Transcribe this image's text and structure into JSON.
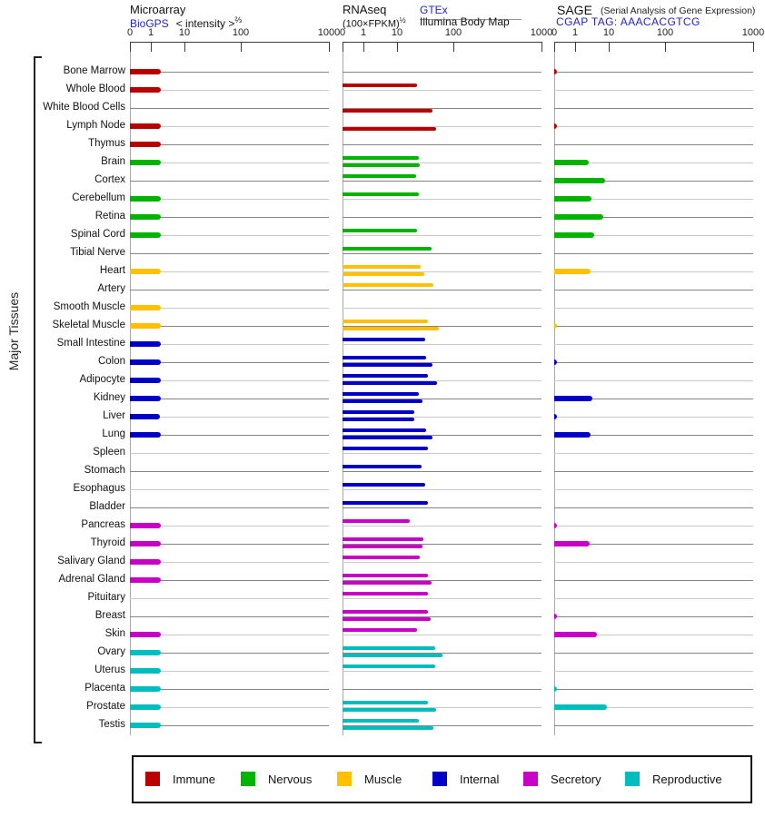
{
  "chart_data": {
    "type": "bar",
    "orientation": "horizontal",
    "left_axis_label": "Major Tissues",
    "axis": {
      "tick_labels": [
        "0",
        "1",
        "10",
        "100",
        "1000"
      ],
      "tick_values": [
        0,
        1,
        10,
        100,
        1000
      ],
      "scale": "log-like, 0 at origin"
    },
    "panels": [
      {
        "key": "microarray",
        "title": "Microarray",
        "link": "BioGPS",
        "suffix": "< intensity >",
        "suffix_sup": "⅔"
      },
      {
        "key": "rnaseq",
        "title": "RNAseq",
        "formula": "(100×FPKM)",
        "formula_sup": "½",
        "link": "GTEx",
        "sublink": "Illumina Body Map"
      },
      {
        "key": "sage",
        "title": "SAGE",
        "note": "(Serial Analysis of Gene Expression)",
        "link": "CGAP TAG: AAACACGTCG"
      }
    ],
    "groups": {
      "immune": {
        "label": "Immune",
        "color": "#bb0000"
      },
      "nervous": {
        "label": "Nervous",
        "color": "#00b400"
      },
      "muscle": {
        "label": "Muscle",
        "color": "#ffc000"
      },
      "internal": {
        "label": "Internal",
        "color": "#0000c8"
      },
      "secretory": {
        "label": "Secretory",
        "color": "#c800c8"
      },
      "reproductive": {
        "label": "Reproductive",
        "color": "#00bebe"
      }
    },
    "legend_order": [
      "immune",
      "nervous",
      "muscle",
      "internal",
      "secretory",
      "reproductive"
    ],
    "tissues": [
      {
        "name": "Bone Marrow",
        "group": "immune",
        "microarray": 2,
        "rnaseq": [
          null,
          null
        ],
        "sage": 0
      },
      {
        "name": "Whole Blood",
        "group": "immune",
        "microarray": 2,
        "rnaseq": [
          23,
          null
        ],
        "sage": null
      },
      {
        "name": "White Blood Cells",
        "group": "immune",
        "microarray": null,
        "rnaseq": [
          null,
          43
        ],
        "sage": null
      },
      {
        "name": "Lymph Node",
        "group": "immune",
        "microarray": 2,
        "rnaseq": [
          null,
          50
        ],
        "sage": 0
      },
      {
        "name": "Thymus",
        "group": "immune",
        "microarray": 2,
        "rnaseq": [
          null,
          null
        ],
        "sage": null
      },
      {
        "name": "Brain",
        "group": "nervous",
        "microarray": 2,
        "rnaseq": [
          24,
          25
        ],
        "sage": 2.5
      },
      {
        "name": "Cortex",
        "group": "nervous",
        "microarray": null,
        "rnaseq": [
          22,
          null
        ],
        "sage": 8
      },
      {
        "name": "Cerebellum",
        "group": "nervous",
        "microarray": 2,
        "rnaseq": [
          24,
          null
        ],
        "sage": 3
      },
      {
        "name": "Retina",
        "group": "nervous",
        "microarray": 2,
        "rnaseq": [
          null,
          null
        ],
        "sage": 7
      },
      {
        "name": "Spinal Cord",
        "group": "nervous",
        "microarray": 2,
        "rnaseq": [
          23,
          null
        ],
        "sage": 3.6
      },
      {
        "name": "Tibial Nerve",
        "group": "nervous",
        "microarray": null,
        "rnaseq": [
          41,
          null
        ],
        "sage": null
      },
      {
        "name": "Heart",
        "group": "muscle",
        "microarray": 2,
        "rnaseq": [
          26,
          31
        ],
        "sage": 2.8
      },
      {
        "name": "Artery",
        "group": "muscle",
        "microarray": null,
        "rnaseq": [
          45,
          null
        ],
        "sage": null
      },
      {
        "name": "Smooth Muscle",
        "group": "muscle",
        "microarray": 2,
        "rnaseq": [
          null,
          null
        ],
        "sage": null
      },
      {
        "name": "Skeletal Muscle",
        "group": "muscle",
        "microarray": 2,
        "rnaseq": [
          35,
          55
        ],
        "sage": 0
      },
      {
        "name": "Small Intestine",
        "group": "internal",
        "microarray": 2,
        "rnaseq": [
          32,
          null
        ],
        "sage": null
      },
      {
        "name": "Colon",
        "group": "internal",
        "microarray": 2,
        "rnaseq": [
          33,
          43
        ],
        "sage": 0
      },
      {
        "name": "Adipocyte",
        "group": "internal",
        "microarray": 2,
        "rnaseq": [
          35,
          52
        ],
        "sage": null
      },
      {
        "name": "Kidney",
        "group": "internal",
        "microarray": 2,
        "rnaseq": [
          24,
          28
        ],
        "sage": 3.2
      },
      {
        "name": "Liver",
        "group": "internal",
        "microarray": 1.9,
        "rnaseq": [
          20,
          20
        ],
        "sage": 0
      },
      {
        "name": "Lung",
        "group": "internal",
        "microarray": 2,
        "rnaseq": [
          33,
          42
        ],
        "sage": 2.9
      },
      {
        "name": "Spleen",
        "group": "internal",
        "microarray": null,
        "rnaseq": [
          35,
          null
        ],
        "sage": null
      },
      {
        "name": "Stomach",
        "group": "internal",
        "microarray": null,
        "rnaseq": [
          27,
          null
        ],
        "sage": null
      },
      {
        "name": "Esophagus",
        "group": "internal",
        "microarray": null,
        "rnaseq": [
          32,
          null
        ],
        "sage": null
      },
      {
        "name": "Bladder",
        "group": "internal",
        "microarray": null,
        "rnaseq": [
          35,
          null
        ],
        "sage": null
      },
      {
        "name": "Pancreas",
        "group": "secretory",
        "microarray": 2,
        "rnaseq": [
          17,
          null
        ],
        "sage": 0
      },
      {
        "name": "Thyroid",
        "group": "secretory",
        "microarray": 2,
        "rnaseq": [
          29,
          28
        ],
        "sage": 2.7
      },
      {
        "name": "Salivary Gland",
        "group": "secretory",
        "microarray": 2,
        "rnaseq": [
          25,
          null
        ],
        "sage": null
      },
      {
        "name": "Adrenal Gland",
        "group": "secretory",
        "microarray": 2,
        "rnaseq": [
          36,
          41
        ],
        "sage": null
      },
      {
        "name": "Pituitary",
        "group": "secretory",
        "microarray": null,
        "rnaseq": [
          35,
          null
        ],
        "sage": null
      },
      {
        "name": "Breast",
        "group": "secretory",
        "microarray": null,
        "rnaseq": [
          35,
          40
        ],
        "sage": 0
      },
      {
        "name": "Skin",
        "group": "secretory",
        "microarray": 2,
        "rnaseq": [
          23,
          null
        ],
        "sage": 4.5
      },
      {
        "name": "Ovary",
        "group": "reproductive",
        "microarray": 2,
        "rnaseq": [
          48,
          65
        ],
        "sage": null
      },
      {
        "name": "Uterus",
        "group": "reproductive",
        "microarray": 2,
        "rnaseq": [
          48,
          null
        ],
        "sage": null
      },
      {
        "name": "Placenta",
        "group": "reproductive",
        "microarray": 2,
        "rnaseq": [
          null,
          null
        ],
        "sage": 0
      },
      {
        "name": "Prostate",
        "group": "reproductive",
        "microarray": 2,
        "rnaseq": [
          35,
          50
        ],
        "sage": 9
      },
      {
        "name": "Testis",
        "group": "reproductive",
        "microarray": 2,
        "rnaseq": [
          24,
          45
        ],
        "sage": null
      }
    ]
  }
}
